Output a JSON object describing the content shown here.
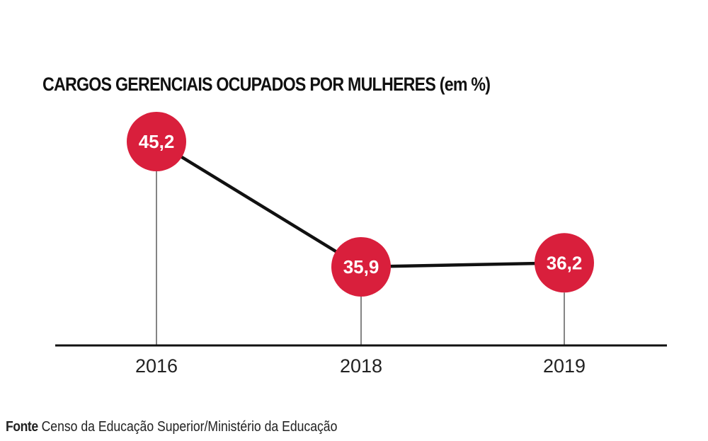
{
  "chart_data": {
    "type": "line",
    "title": "CARGOS GERENCIAIS OCUPADOS POR MULHERES (em %)",
    "xlabel": "",
    "ylabel": "",
    "categories": [
      "2016",
      "2018",
      "2019"
    ],
    "values": [
      45.2,
      35.9,
      36.2
    ],
    "value_labels": [
      "45,2",
      "35,9",
      "36,2"
    ],
    "ylim": [
      25,
      50
    ],
    "grid": false,
    "legend": "none"
  },
  "source": {
    "label": "Fonte",
    "text": "Censo da Educação Superior/Ministério da Educação"
  },
  "colors": {
    "marker": "#d91f3c",
    "line": "#111111",
    "stem": "#333333",
    "axis": "#111111",
    "label_text": "#ffffff",
    "tick_text": "#222222"
  }
}
